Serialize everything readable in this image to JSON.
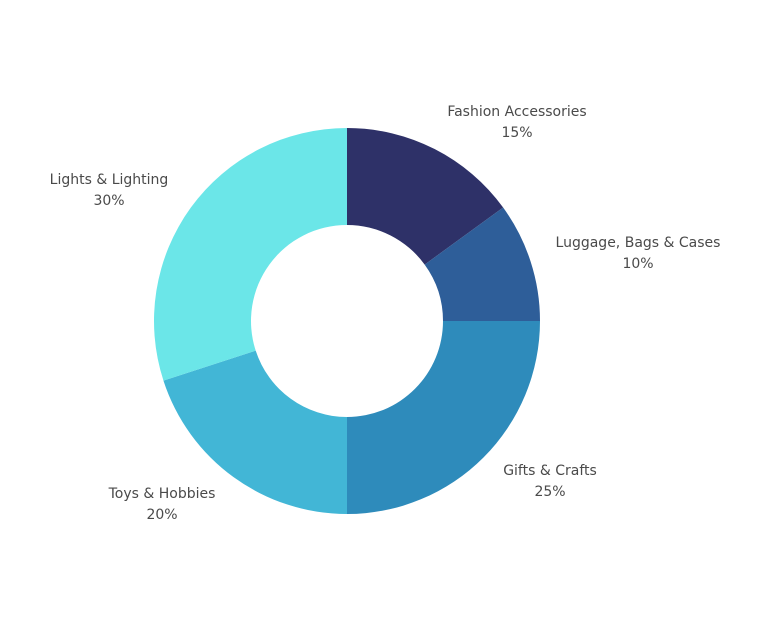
{
  "chart_data": {
    "type": "pie",
    "variant": "donut",
    "title": "",
    "categories": [
      "Fashion Accessories",
      "Luggage, Bags & Cases",
      "Gifts & Crafts",
      "Toys & Hobbies",
      "Lights & Lighting"
    ],
    "values": [
      15,
      10,
      25,
      20,
      30
    ],
    "value_labels": [
      "15%",
      "10%",
      "25%",
      "20%",
      "30%"
    ],
    "colors": [
      "#2e3168",
      "#2e5e99",
      "#2e8bbb",
      "#42b6d6",
      "#6be6e8"
    ],
    "legend": "none",
    "start_angle": "12 o'clock",
    "direction": "clockwise"
  }
}
